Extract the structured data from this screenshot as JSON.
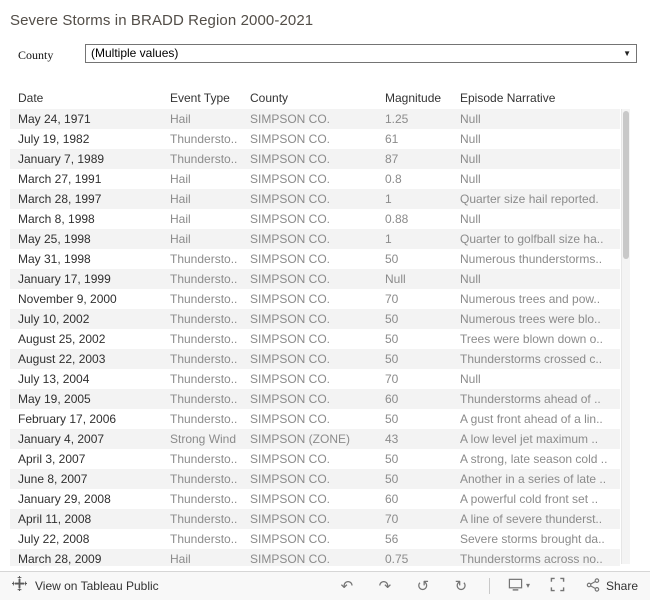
{
  "title": "Severe Storms in BRADD Region 2000-2021",
  "filter": {
    "label": "County",
    "value": "(Multiple values)"
  },
  "table": {
    "columns": [
      "Date",
      "Event Type",
      "County",
      "Magnitude",
      "Episode Narrative"
    ],
    "rows": [
      [
        "May 24, 1971",
        "Hail",
        "SIMPSON CO.",
        "1.25",
        "Null"
      ],
      [
        "July 19, 1982",
        "Thundersto..",
        "SIMPSON CO.",
        "61",
        "Null"
      ],
      [
        "January 7, 1989",
        "Thundersto..",
        "SIMPSON CO.",
        "87",
        "Null"
      ],
      [
        "March 27, 1991",
        "Hail",
        "SIMPSON CO.",
        "0.8",
        "Null"
      ],
      [
        "March 28, 1997",
        "Hail",
        "SIMPSON CO.",
        "1",
        "Quarter size hail reported."
      ],
      [
        "March 8, 1998",
        "Hail",
        "SIMPSON CO.",
        "0.88",
        "Null"
      ],
      [
        "May 25, 1998",
        "Hail",
        "SIMPSON CO.",
        "1",
        "Quarter to golfball size ha.."
      ],
      [
        "May 31, 1998",
        "Thundersto..",
        "SIMPSON CO.",
        "50",
        "Numerous thunderstorms.."
      ],
      [
        "January 17, 1999",
        "Thundersto..",
        "SIMPSON CO.",
        "Null",
        "Null"
      ],
      [
        "November 9, 2000",
        "Thundersto..",
        "SIMPSON CO.",
        "70",
        "Numerous trees and pow.."
      ],
      [
        "July 10, 2002",
        "Thundersto..",
        "SIMPSON CO.",
        "50",
        "Numerous trees were blo.."
      ],
      [
        "August 25, 2002",
        "Thundersto..",
        "SIMPSON CO.",
        "50",
        "Trees were blown down o.."
      ],
      [
        "August 22, 2003",
        "Thundersto..",
        "SIMPSON CO.",
        "50",
        "Thunderstorms crossed c.."
      ],
      [
        "July 13, 2004",
        "Thundersto..",
        "SIMPSON CO.",
        "70",
        "Null"
      ],
      [
        "May 19, 2005",
        "Thundersto..",
        "SIMPSON CO.",
        "60",
        "Thunderstorms ahead of .."
      ],
      [
        "February 17, 2006",
        "Thundersto..",
        "SIMPSON CO.",
        "50",
        "A gust front ahead of a lin.."
      ],
      [
        "January 4, 2007",
        "Strong Wind",
        "SIMPSON (ZONE)",
        "43",
        "A low level jet maximum .."
      ],
      [
        "April 3, 2007",
        "Thundersto..",
        "SIMPSON CO.",
        "50",
        "A strong, late season cold .."
      ],
      [
        "June 8, 2007",
        "Thundersto..",
        "SIMPSON CO.",
        "50",
        "Another in a series of late .."
      ],
      [
        "January 29, 2008",
        "Thundersto..",
        "SIMPSON CO.",
        "60",
        "A powerful cold front set .."
      ],
      [
        "April 11, 2008",
        "Thundersto..",
        "SIMPSON CO.",
        "70",
        "A line of severe thunderst.."
      ],
      [
        "July 22, 2008",
        "Thundersto..",
        "SIMPSON CO.",
        "56",
        "Severe storms brought da.."
      ],
      [
        "March 28, 2009",
        "Hail",
        "SIMPSON CO.",
        "0.75",
        "Thunderstorms across no.."
      ]
    ]
  },
  "toolbar": {
    "view_label": "View on Tableau Public",
    "share_label": "Share"
  },
  "icons": {
    "dropdown_caret": "▼",
    "undo": "↶",
    "redo": "↷",
    "reset": "↺",
    "refresh": "↻",
    "download_caret": "▾",
    "svg_icon_names": [
      "tableau-logo-icon",
      "download-device-icon",
      "fullscreen-icon",
      "share-icon"
    ]
  },
  "colors": {
    "row_band": "#f3f3f3",
    "muted_text": "#8b8b8b",
    "dark_text": "#303030",
    "title_text": "#534e48",
    "toolbar_bg": "#f8f8f8"
  }
}
